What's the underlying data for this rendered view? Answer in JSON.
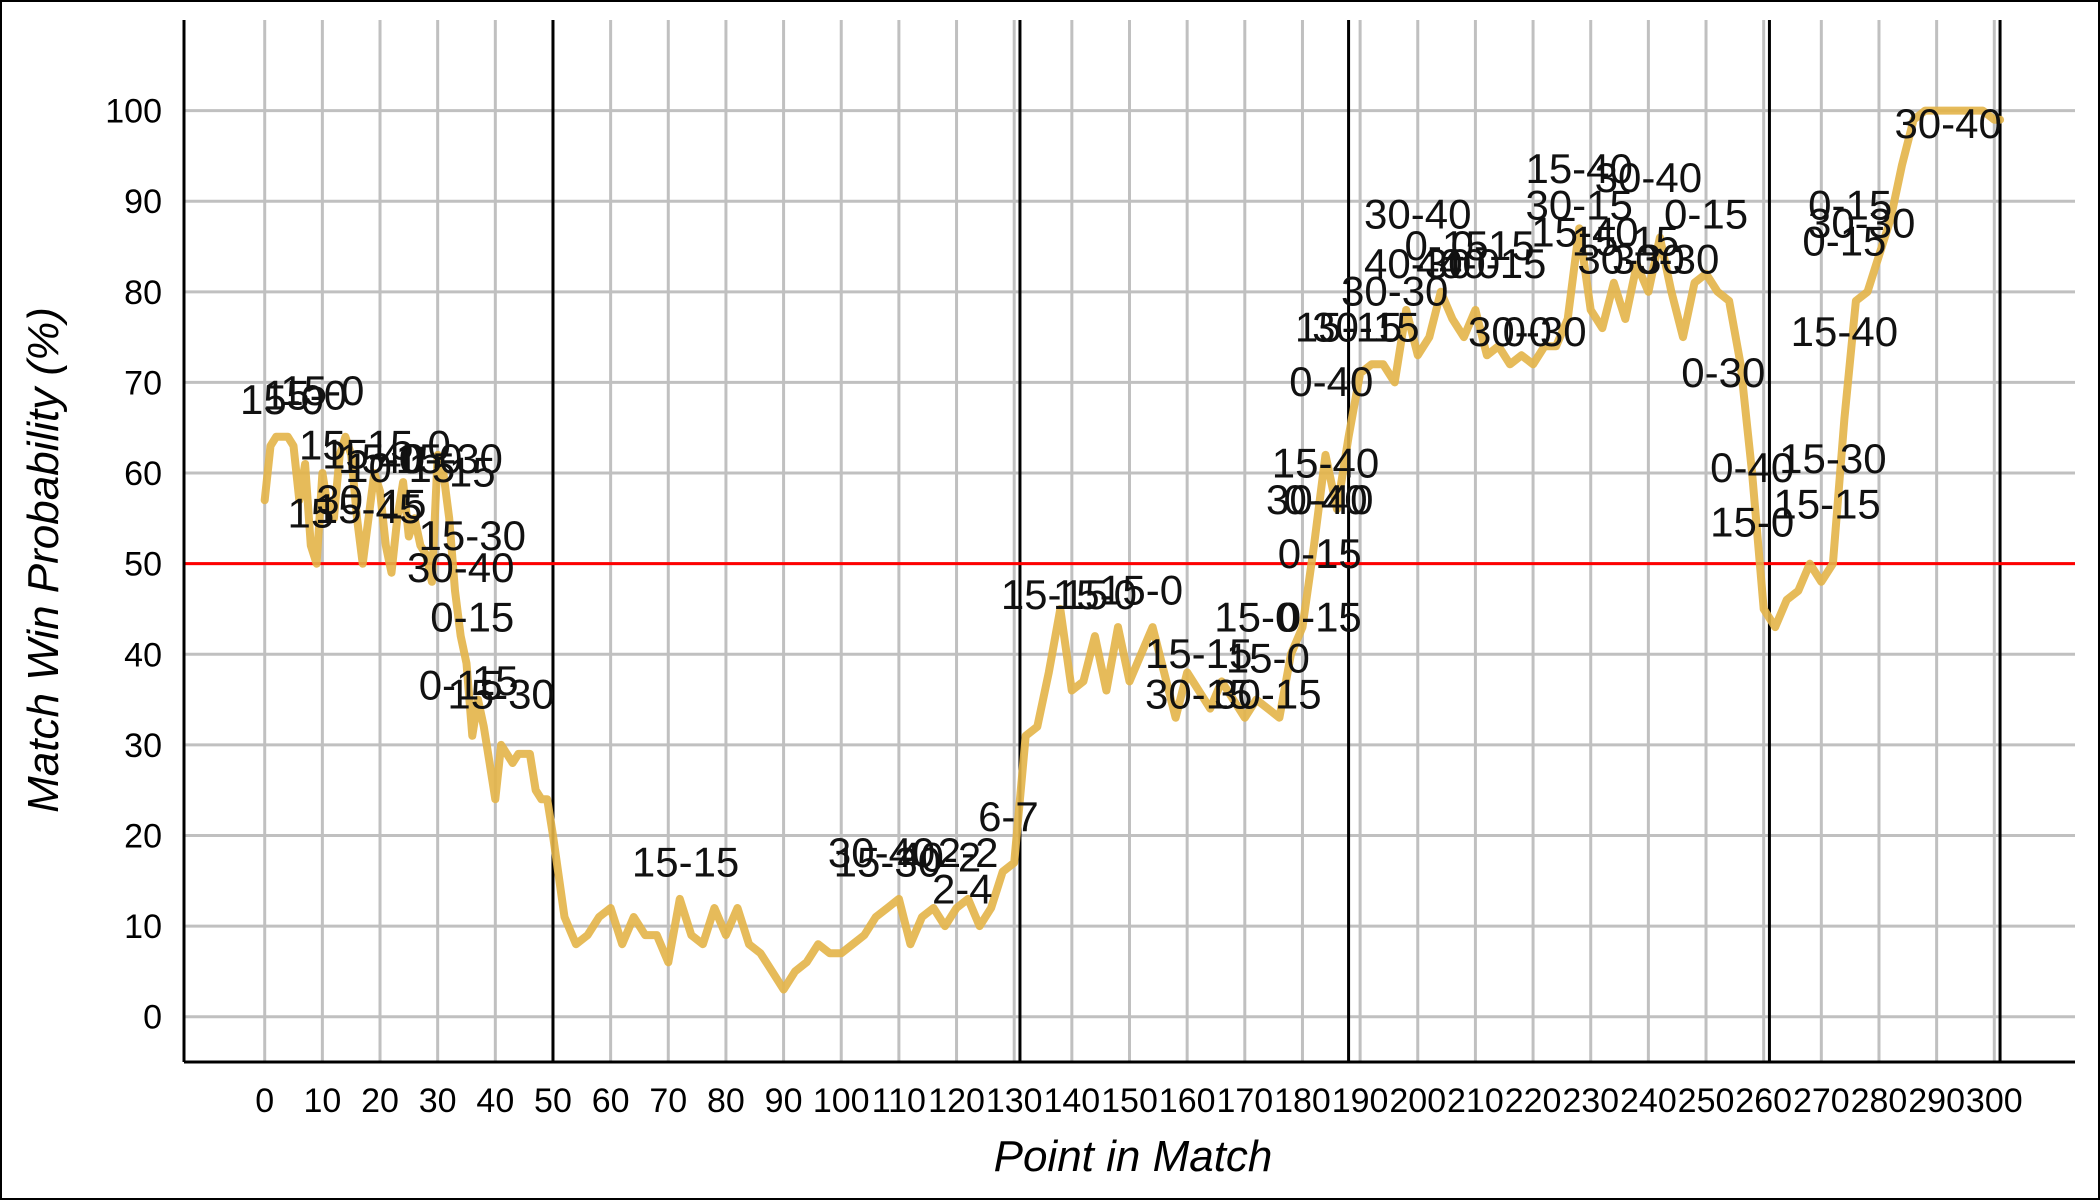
{
  "chart_data": {
    "type": "line",
    "title": "",
    "xlabel": "Point in Match",
    "ylabel": "Match Win Probability (%)",
    "xlim": [
      -14,
      314
    ],
    "ylim": [
      -5,
      110
    ],
    "xticks": [
      0,
      10,
      20,
      30,
      40,
      50,
      60,
      70,
      80,
      90,
      100,
      110,
      120,
      130,
      140,
      150,
      160,
      170,
      180,
      190,
      200,
      210,
      220,
      230,
      240,
      250,
      260,
      270,
      280,
      290,
      300
    ],
    "yticks": [
      0,
      10,
      20,
      30,
      40,
      50,
      60,
      70,
      80,
      90,
      100
    ],
    "grid": true,
    "reference_line": {
      "y": 50,
      "color": "#ff0000"
    },
    "set_boundaries": [
      50,
      131,
      188,
      261,
      301
    ],
    "series": [
      {
        "color": "#e3b448",
        "x": [
          0,
          1,
          2,
          3,
          4,
          5,
          6,
          7,
          8,
          9,
          10,
          11,
          12,
          13,
          14,
          15,
          16,
          17,
          18,
          19,
          20,
          21,
          22,
          23,
          24,
          25,
          26,
          27,
          28,
          29,
          30,
          31,
          32,
          33,
          34,
          35,
          36,
          37,
          38,
          39,
          40,
          41,
          42,
          43,
          44,
          45,
          46,
          47,
          48,
          49,
          50,
          52,
          54,
          56,
          58,
          60,
          62,
          64,
          66,
          68,
          70,
          72,
          74,
          76,
          78,
          80,
          82,
          84,
          86,
          88,
          90,
          92,
          94,
          96,
          98,
          100,
          102,
          104,
          106,
          108,
          110,
          112,
          114,
          116,
          118,
          120,
          122,
          124,
          126,
          128,
          130,
          132,
          134,
          136,
          138,
          140,
          142,
          144,
          146,
          148,
          150,
          152,
          154,
          156,
          158,
          160,
          162,
          164,
          166,
          168,
          170,
          172,
          174,
          176,
          178,
          180,
          182,
          184,
          186,
          188,
          190,
          192,
          194,
          196,
          198,
          200,
          202,
          204,
          206,
          208,
          210,
          212,
          214,
          216,
          218,
          220,
          222,
          224,
          226,
          228,
          230,
          232,
          234,
          236,
          238,
          240,
          242,
          244,
          246,
          248,
          250,
          252,
          254,
          256,
          258,
          260,
          262,
          264,
          266,
          268,
          270,
          272,
          274,
          276,
          278,
          280,
          282,
          284,
          286,
          288,
          290,
          292,
          294,
          296,
          298,
          300,
          301
        ],
        "y": [
          57,
          63,
          64,
          64,
          64,
          63,
          57,
          61,
          52,
          50,
          60,
          56,
          55,
          62,
          64,
          62,
          55,
          50,
          55,
          60,
          58,
          52,
          49,
          55,
          59,
          53,
          55,
          52,
          51,
          48,
          62,
          60,
          55,
          47,
          42,
          39,
          31,
          35,
          32,
          28,
          24,
          30,
          29,
          28,
          29,
          29,
          29,
          25,
          24,
          24,
          20,
          11,
          8,
          9,
          11,
          12,
          8,
          11,
          9,
          9,
          6,
          13,
          9,
          8,
          12,
          9,
          12,
          8,
          7,
          5,
          3,
          5,
          6,
          8,
          7,
          7,
          8,
          9,
          11,
          12,
          13,
          8,
          11,
          12,
          10,
          12,
          13,
          10,
          12,
          16,
          17,
          31,
          32,
          38,
          45,
          36,
          37,
          42,
          36,
          43,
          37,
          40,
          43,
          38,
          33,
          38,
          36,
          34,
          37,
          35,
          33,
          35,
          34,
          33,
          40,
          43,
          52,
          62,
          56,
          64,
          71,
          72,
          72,
          70,
          78,
          73,
          75,
          80,
          77,
          75,
          78,
          73,
          74,
          72,
          73,
          72,
          74,
          74,
          77,
          87,
          78,
          76,
          81,
          77,
          83,
          80,
          86,
          80,
          75,
          81,
          82,
          80,
          79,
          72,
          60,
          45,
          43,
          46,
          47,
          50,
          48,
          50,
          66,
          79,
          80,
          84,
          88,
          94,
          99,
          100,
          100,
          100,
          100,
          100,
          100,
          99,
          99
        ]
      }
    ],
    "annotations": [
      {
        "text": "15-0",
        "x": 3,
        "y": 66.5
      },
      {
        "text": "15-0",
        "x": 7,
        "y": 67
      },
      {
        "text": "15-0",
        "x": 10,
        "y": 67.5
      },
      {
        "text": "15",
        "x": 10,
        "y": 61.5
      },
      {
        "text": "15",
        "x": 14,
        "y": 60.5
      },
      {
        "text": "10",
        "x": 18,
        "y": 59
      },
      {
        "text": "15-0",
        "x": 20,
        "y": 60
      },
      {
        "text": "15-0",
        "x": 25,
        "y": 61.5
      },
      {
        "text": "40-0",
        "x": 27,
        "y": 60
      },
      {
        "text": "15",
        "x": 29,
        "y": 59
      },
      {
        "text": "15-30",
        "x": 32,
        "y": 60
      },
      {
        "text": "15",
        "x": 36,
        "y": 58.5
      },
      {
        "text": "15",
        "x": 8,
        "y": 54
      },
      {
        "text": "30",
        "x": 13,
        "y": 55.5
      },
      {
        "text": "15-45",
        "x": 18,
        "y": 54.5
      },
      {
        "text": "15",
        "x": 24,
        "y": 55
      },
      {
        "text": "15-30",
        "x": 36,
        "y": 51.5
      },
      {
        "text": "30-40",
        "x": 34,
        "y": 48
      },
      {
        "text": "0-15",
        "x": 36,
        "y": 42.5
      },
      {
        "text": "0-15",
        "x": 34,
        "y": 35
      },
      {
        "text": "15",
        "x": 40,
        "y": 35.5
      },
      {
        "text": "15-30",
        "x": 41,
        "y": 34
      },
      {
        "text": "15-15",
        "x": 73,
        "y": 15.5
      },
      {
        "text": "30-40",
        "x": 107,
        "y": 16.5
      },
      {
        "text": "15-30",
        "x": 108,
        "y": 15.5
      },
      {
        "text": "40-2",
        "x": 117,
        "y": 16
      },
      {
        "text": "2-2",
        "x": 122,
        "y": 16.5
      },
      {
        "text": "2-4",
        "x": 121,
        "y": 12.5
      },
      {
        "text": "6-7",
        "x": 129,
        "y": 20.5
      },
      {
        "text": "15-15",
        "x": 137,
        "y": 45
      },
      {
        "text": "15-0",
        "x": 144,
        "y": 45
      },
      {
        "text": "15-0",
        "x": 152,
        "y": 45.5
      },
      {
        "text": "15-0",
        "x": 172,
        "y": 42.5
      },
      {
        "text": "15-15",
        "x": 162,
        "y": 38.5
      },
      {
        "text": "15-0",
        "x": 174,
        "y": 38
      },
      {
        "text": "30-15",
        "x": 162,
        "y": 34
      },
      {
        "text": "30-15",
        "x": 174,
        "y": 34
      },
      {
        "text": "0-15",
        "x": 183,
        "y": 42.5
      },
      {
        "text": "0-15",
        "x": 183,
        "y": 49.5
      },
      {
        "text": "15-40",
        "x": 184,
        "y": 59.5
      },
      {
        "text": "30-40",
        "x": 183,
        "y": 55.5
      },
      {
        "text": "0-40",
        "x": 184,
        "y": 55.5
      },
      {
        "text": "0-40",
        "x": 185,
        "y": 68.5
      },
      {
        "text": "15-15",
        "x": 188,
        "y": 74.5
      },
      {
        "text": "30-15",
        "x": 191,
        "y": 74.5
      },
      {
        "text": "30-30",
        "x": 196,
        "y": 78.5
      },
      {
        "text": "40-30",
        "x": 200,
        "y": 81.5
      },
      {
        "text": "30-40",
        "x": 200,
        "y": 87
      },
      {
        "text": "0-15",
        "x": 205,
        "y": 83.5
      },
      {
        "text": "40-0",
        "x": 207,
        "y": 81.5
      },
      {
        "text": "0-15",
        "x": 213,
        "y": 83.5
      },
      {
        "text": "40-15",
        "x": 213,
        "y": 81.5
      },
      {
        "text": "30-0",
        "x": 216,
        "y": 74
      },
      {
        "text": "0-30",
        "x": 222,
        "y": 74
      },
      {
        "text": "15-40",
        "x": 228,
        "y": 92
      },
      {
        "text": "30-15",
        "x": 228,
        "y": 88
      },
      {
        "text": "15-40",
        "x": 229,
        "y": 85
      },
      {
        "text": "30-40",
        "x": 240,
        "y": 91
      },
      {
        "text": "15-15",
        "x": 236,
        "y": 84
      },
      {
        "text": "30-30",
        "x": 237,
        "y": 82
      },
      {
        "text": "30-30",
        "x": 243,
        "y": 82
      },
      {
        "text": "0-15",
        "x": 250,
        "y": 87
      },
      {
        "text": "0-30",
        "x": 253,
        "y": 69.5
      },
      {
        "text": "0-40",
        "x": 258,
        "y": 59
      },
      {
        "text": "15-0",
        "x": 258,
        "y": 53
      },
      {
        "text": "15-30",
        "x": 272,
        "y": 60
      },
      {
        "text": "15-15",
        "x": 271,
        "y": 55
      },
      {
        "text": "15-40",
        "x": 274,
        "y": 74
      },
      {
        "text": "0-15",
        "x": 275,
        "y": 88
      },
      {
        "text": "30-30",
        "x": 277,
        "y": 86
      },
      {
        "text": "0-15",
        "x": 274,
        "y": 84
      },
      {
        "text": "30-40",
        "x": 292,
        "y": 97
      }
    ]
  }
}
